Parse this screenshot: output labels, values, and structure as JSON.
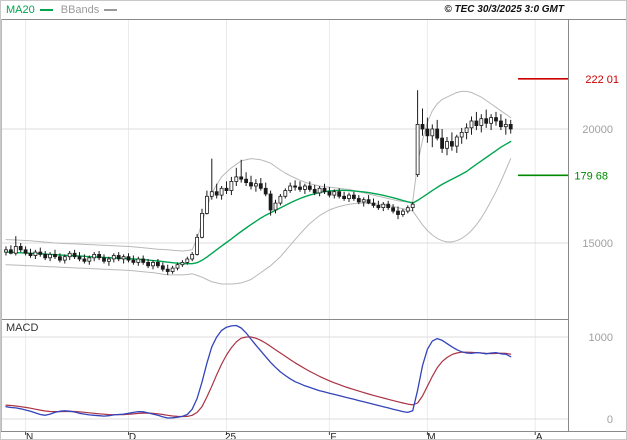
{
  "header": {
    "legend": [
      {
        "label": "MA20",
        "color": "#00a550"
      },
      {
        "label": "BBands",
        "color": "#9a9a9a"
      }
    ],
    "copyright": "© TEC 30/3/2025 3:0 GMT"
  },
  "chart_data": {
    "type": "candlestick",
    "title": "",
    "colors": {
      "ma20": "#00a550",
      "bbands": "#b9b9b9",
      "candle": "#1a1a1a",
      "macd": "#3344bb",
      "signal": "#aa3344",
      "tick_label": "#a0a0a0",
      "axis_label": "#222222"
    },
    "price_panel": {
      "ylim": [
        13000,
        24800
      ],
      "y_ticks": [
        {
          "value": 20000,
          "label": "20000"
        },
        {
          "value": 15000,
          "label": "15000"
        }
      ],
      "levels": [
        {
          "value": 22201,
          "label": "222 01",
          "color": "#cc0000"
        },
        {
          "value": 17968,
          "label": "179 68",
          "color": "#008a00"
        }
      ],
      "candles": [
        [
          14600,
          14850,
          14450,
          14700
        ],
        [
          14700,
          14900,
          14500,
          14550
        ],
        [
          14550,
          15300,
          14450,
          14850
        ],
        [
          14850,
          15000,
          14600,
          14700
        ],
        [
          14700,
          14850,
          14450,
          14550
        ],
        [
          14550,
          14750,
          14350,
          14450
        ],
        [
          14450,
          14700,
          14300,
          14600
        ],
        [
          14600,
          14800,
          14400,
          14500
        ],
        [
          14500,
          14650,
          14250,
          14350
        ],
        [
          14350,
          14600,
          14200,
          14500
        ],
        [
          14500,
          14700,
          14300,
          14400
        ],
        [
          14400,
          14550,
          14150,
          14250
        ],
        [
          14250,
          14500,
          14100,
          14400
        ],
        [
          14400,
          14650,
          14250,
          14550
        ],
        [
          14550,
          14700,
          14300,
          14400
        ],
        [
          14400,
          14600,
          14200,
          14300
        ],
        [
          14300,
          14500,
          14100,
          14200
        ],
        [
          14200,
          14450,
          14050,
          14350
        ],
        [
          14350,
          14600,
          14200,
          14500
        ],
        [
          14500,
          14650,
          14250,
          14350
        ],
        [
          14350,
          14500,
          14100,
          14200
        ],
        [
          14200,
          14400,
          14000,
          14300
        ],
        [
          14300,
          14550,
          14150,
          14450
        ],
        [
          14450,
          14600,
          14200,
          14300
        ],
        [
          14300,
          14500,
          14100,
          14400
        ],
        [
          14400,
          14550,
          14150,
          14250
        ],
        [
          14250,
          14450,
          14050,
          14150
        ],
        [
          14150,
          14400,
          14000,
          14300
        ],
        [
          14300,
          14450,
          14050,
          14150
        ],
        [
          14150,
          14300,
          13900,
          14000
        ],
        [
          14000,
          14250,
          13850,
          14150
        ],
        [
          14150,
          14300,
          13900,
          14000
        ],
        [
          14000,
          14150,
          13750,
          13850
        ],
        [
          13850,
          14050,
          13600,
          13750
        ],
        [
          13750,
          14000,
          13650,
          13900
        ],
        [
          13900,
          14150,
          13800,
          14050
        ],
        [
          14050,
          14250,
          13950,
          14150
        ],
        [
          14150,
          14400,
          14050,
          14300
        ],
        [
          14300,
          14600,
          14200,
          14500
        ],
        [
          14500,
          15400,
          14450,
          15250
        ],
        [
          15250,
          16500,
          15200,
          16300
        ],
        [
          16300,
          17300,
          16250,
          17050
        ],
        [
          17050,
          18700,
          16900,
          17250
        ],
        [
          17250,
          17600,
          16950,
          17100
        ],
        [
          17100,
          17500,
          16900,
          17400
        ],
        [
          17400,
          17700,
          17150,
          17300
        ],
        [
          17300,
          17900,
          17100,
          17700
        ],
        [
          17700,
          18300,
          17500,
          17900
        ],
        [
          17900,
          18650,
          17650,
          17800
        ],
        [
          17800,
          18100,
          17500,
          17650
        ],
        [
          17650,
          17950,
          17350,
          17500
        ],
        [
          17500,
          17800,
          17250,
          17600
        ],
        [
          17600,
          17850,
          17300,
          17400
        ],
        [
          17400,
          17650,
          17050,
          17150
        ],
        [
          17150,
          17300,
          16200,
          16450
        ],
        [
          16450,
          16900,
          16300,
          16750
        ],
        [
          16750,
          17150,
          16650,
          17050
        ],
        [
          17050,
          17400,
          16950,
          17300
        ],
        [
          17300,
          17650,
          17200,
          17500
        ],
        [
          17500,
          17750,
          17300,
          17450
        ],
        [
          17450,
          17700,
          17250,
          17350
        ],
        [
          17350,
          17600,
          17150,
          17500
        ],
        [
          17500,
          17700,
          17250,
          17350
        ],
        [
          17350,
          17550,
          17100,
          17200
        ],
        [
          17200,
          17500,
          17050,
          17400
        ],
        [
          17400,
          17600,
          17150,
          17250
        ],
        [
          17250,
          17450,
          17000,
          17100
        ],
        [
          17100,
          17350,
          16950,
          17250
        ],
        [
          17250,
          17400,
          16950,
          17050
        ],
        [
          17050,
          17250,
          16850,
          16950
        ],
        [
          16950,
          17200,
          16800,
          17100
        ],
        [
          17100,
          17250,
          16850,
          16950
        ],
        [
          16950,
          17100,
          16700,
          16800
        ],
        [
          16800,
          17000,
          16600,
          16900
        ],
        [
          16900,
          17100,
          16700,
          16750
        ],
        [
          16750,
          16950,
          16550,
          16650
        ],
        [
          16650,
          16850,
          16450,
          16550
        ],
        [
          16550,
          16800,
          16400,
          16700
        ],
        [
          16700,
          16850,
          16450,
          16550
        ],
        [
          16550,
          16700,
          16300,
          16400
        ],
        [
          16400,
          16600,
          16050,
          16250
        ],
        [
          16250,
          16500,
          16150,
          16400
        ],
        [
          16400,
          16650,
          16300,
          16550
        ],
        [
          16550,
          16800,
          16400,
          16700
        ],
        [
          18000,
          21700,
          17900,
          20200
        ],
        [
          20200,
          20900,
          19700,
          20000
        ],
        [
          20000,
          20500,
          19400,
          19700
        ],
        [
          19700,
          20200,
          19200,
          20000
        ],
        [
          20000,
          20400,
          19500,
          19600
        ],
        [
          19600,
          20000,
          18950,
          19150
        ],
        [
          19150,
          19650,
          18850,
          19450
        ],
        [
          19450,
          19850,
          19050,
          19250
        ],
        [
          19250,
          19750,
          18950,
          19650
        ],
        [
          19650,
          20050,
          19350,
          19850
        ],
        [
          19850,
          20250,
          19550,
          20050
        ],
        [
          20050,
          20550,
          19750,
          20350
        ],
        [
          20350,
          20750,
          19950,
          20150
        ],
        [
          20150,
          20650,
          19850,
          20450
        ],
        [
          20450,
          20850,
          20050,
          20250
        ],
        [
          20250,
          20650,
          19950,
          20500
        ],
        [
          20500,
          20750,
          20150,
          20350
        ],
        [
          20350,
          20650,
          19950,
          20100
        ],
        [
          20100,
          20450,
          19750,
          20200
        ],
        [
          20200,
          20400,
          19800,
          20000
        ]
      ],
      "ma20": [
        14600,
        14590,
        14580,
        14570,
        14560,
        14550,
        14540,
        14530,
        14515,
        14500,
        14490,
        14475,
        14460,
        14450,
        14440,
        14430,
        14415,
        14400,
        14390,
        14380,
        14370,
        14355,
        14345,
        14335,
        14325,
        14315,
        14300,
        14285,
        14270,
        14250,
        14230,
        14210,
        14185,
        14160,
        14135,
        14115,
        14100,
        14090,
        14090,
        14135,
        14240,
        14380,
        14545,
        14705,
        14865,
        15020,
        15180,
        15345,
        15505,
        15660,
        15805,
        15950,
        16090,
        16220,
        16330,
        16430,
        16540,
        16650,
        16760,
        16860,
        16950,
        17030,
        17100,
        17160,
        17210,
        17250,
        17280,
        17300,
        17310,
        17310,
        17300,
        17285,
        17265,
        17240,
        17210,
        17175,
        17135,
        17090,
        17040,
        16985,
        16925,
        16865,
        16805,
        16750,
        16870,
        17010,
        17155,
        17300,
        17440,
        17570,
        17690,
        17800,
        17910,
        18020,
        18135,
        18300,
        18450,
        18600,
        18750,
        18900,
        19050,
        19200,
        19330,
        19450
      ],
      "bb_upper": [
        15150,
        15140,
        15130,
        15120,
        15110,
        15100,
        15080,
        15060,
        15040,
        15020,
        15000,
        14990,
        14980,
        14970,
        14960,
        14950,
        14940,
        14930,
        14920,
        14910,
        14900,
        14890,
        14880,
        14870,
        14860,
        14850,
        14830,
        14810,
        14790,
        14770,
        14750,
        14730,
        14715,
        14700,
        14680,
        14665,
        14650,
        14670,
        14700,
        15200,
        15900,
        16550,
        17200,
        17550,
        17900,
        18100,
        18300,
        18450,
        18600,
        18650,
        18700,
        18680,
        18650,
        18580,
        18500,
        18350,
        18200,
        18070,
        17950,
        17850,
        17750,
        17670,
        17600,
        17550,
        17500,
        17470,
        17450,
        17420,
        17400,
        17370,
        17350,
        17300,
        17250,
        17200,
        17150,
        17100,
        17050,
        17000,
        16950,
        16900,
        16850,
        16820,
        16800,
        16800,
        18500,
        19500,
        20300,
        20800,
        21100,
        21300,
        21400,
        21500,
        21600,
        21650,
        21650,
        21600,
        21500,
        21400,
        21250,
        21100,
        20950,
        20800,
        20650,
        20500
      ],
      "bb_lower": [
        14050,
        14040,
        14030,
        14020,
        14010,
        14000,
        13990,
        13980,
        13970,
        13960,
        13950,
        13940,
        13930,
        13920,
        13910,
        13900,
        13890,
        13880,
        13870,
        13860,
        13850,
        13840,
        13830,
        13820,
        13810,
        13800,
        13780,
        13760,
        13740,
        13720,
        13700,
        13665,
        13630,
        13600,
        13600,
        13600,
        13600,
        13620,
        13650,
        13580,
        13500,
        13400,
        13300,
        13250,
        13200,
        13200,
        13200,
        13220,
        13250,
        13320,
        13400,
        13550,
        13700,
        13850,
        14000,
        14200,
        14400,
        14650,
        14900,
        15150,
        15400,
        15630,
        15850,
        16030,
        16200,
        16330,
        16450,
        16530,
        16600,
        16650,
        16700,
        16730,
        16750,
        16750,
        16750,
        16730,
        16700,
        16680,
        16650,
        16600,
        16550,
        16500,
        16450,
        16400,
        16100,
        15800,
        15550,
        15350,
        15200,
        15100,
        15050,
        15050,
        15100,
        15200,
        15350,
        15550,
        15800,
        16100,
        16450,
        16850,
        17250,
        17700,
        18200,
        18700
      ]
    },
    "macd_panel": {
      "label": "MACD",
      "ylim": [
        -150,
        1250
      ],
      "y_ticks": [
        {
          "value": 1000,
          "label": "1000"
        },
        {
          "value": 0,
          "label": "0"
        }
      ],
      "macd": [
        150,
        140,
        135,
        125,
        110,
        95,
        75,
        55,
        45,
        60,
        80,
        95,
        100,
        95,
        85,
        70,
        60,
        50,
        45,
        40,
        35,
        40,
        50,
        55,
        60,
        70,
        80,
        90,
        88,
        75,
        60,
        45,
        25,
        12,
        15,
        22,
        32,
        55,
        120,
        250,
        450,
        680,
        880,
        1000,
        1080,
        1120,
        1135,
        1140,
        1110,
        1050,
        975,
        900,
        830,
        760,
        690,
        630,
        575,
        530,
        490,
        455,
        430,
        405,
        385,
        365,
        345,
        330,
        315,
        300,
        285,
        270,
        255,
        240,
        225,
        210,
        195,
        180,
        165,
        150,
        135,
        120,
        105,
        90,
        80,
        100,
        350,
        650,
        850,
        950,
        980,
        960,
        920,
        880,
        845,
        820,
        805,
        800,
        810,
        805,
        795,
        805,
        810,
        795,
        790,
        760
      ],
      "signal": [
        170,
        165,
        158,
        150,
        142,
        132,
        120,
        108,
        98,
        92,
        90,
        90,
        92,
        93,
        92,
        88,
        82,
        76,
        70,
        64,
        58,
        54,
        52,
        52,
        54,
        57,
        62,
        68,
        72,
        73,
        70,
        64,
        55,
        45,
        37,
        32,
        30,
        32,
        45,
        80,
        150,
        270,
        400,
        540,
        670,
        780,
        870,
        940,
        985,
        1000,
        1000,
        985,
        960,
        925,
        885,
        845,
        805,
        765,
        725,
        685,
        650,
        615,
        580,
        550,
        520,
        492,
        466,
        442,
        420,
        398,
        378,
        358,
        340,
        322,
        305,
        288,
        272,
        256,
        240,
        225,
        210,
        195,
        182,
        172,
        195,
        280,
        400,
        520,
        625,
        700,
        750,
        785,
        805,
        815,
        815,
        812,
        808,
        805,
        800,
        798,
        800,
        802,
        800,
        790
      ]
    },
    "x_axis": {
      "labels": [
        {
          "text": "N",
          "index": 4
        },
        {
          "text": "D",
          "index": 25
        },
        {
          "text": "25",
          "index": 45
        },
        {
          "text": "F",
          "index": 66
        },
        {
          "text": "M",
          "index": 86
        },
        {
          "text": "A",
          "index": 108
        }
      ]
    }
  }
}
